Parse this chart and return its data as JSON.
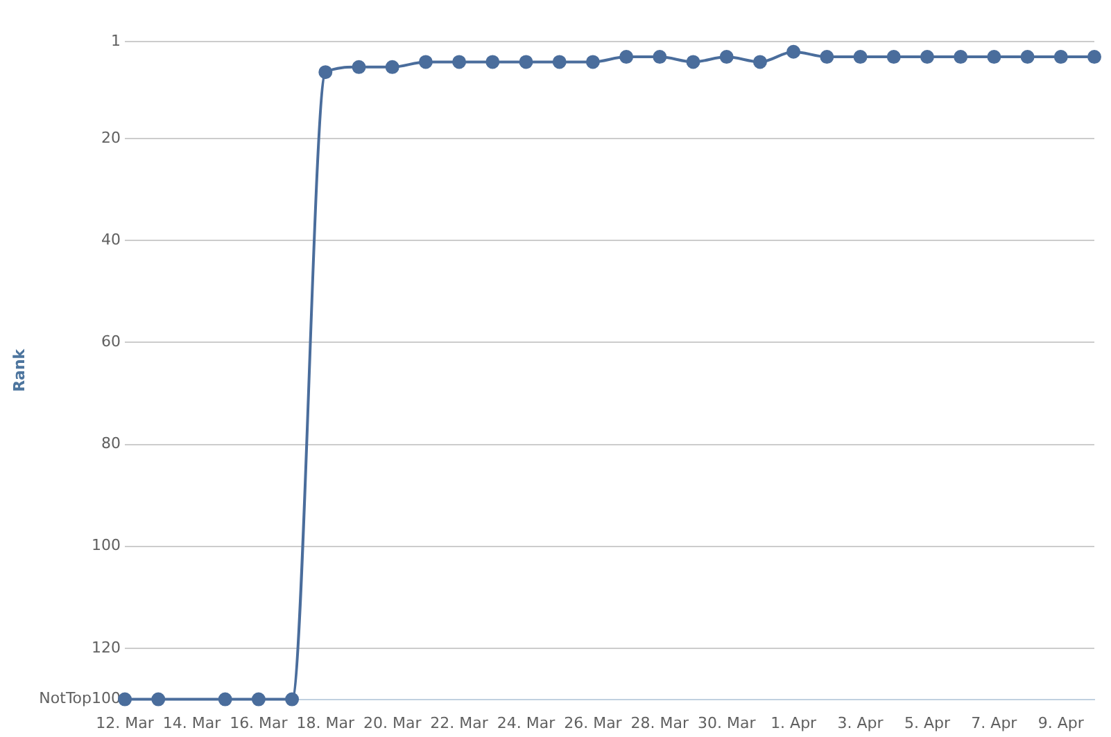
{
  "chart_data": {
    "type": "line",
    "ylabel": "Rank",
    "x": [
      "--03-12",
      "--03-13",
      "--03-15",
      "--03-16",
      "--03-17",
      "--03-18",
      "--03-19",
      "--03-20",
      "--03-21",
      "--03-22",
      "--03-23",
      "--03-24",
      "--03-25",
      "--03-26",
      "--03-27",
      "--03-28",
      "--03-29",
      "--03-30",
      "--03-31",
      "--04-01",
      "--04-02",
      "--04-03",
      "--04-04",
      "--04-05",
      "--04-06",
      "--04-07",
      "--04-08",
      "--04-09",
      "--04-10"
    ],
    "series": [
      {
        "color": "#4a6d9c",
        "values": [
          130,
          130,
          130,
          130,
          130,
          7,
          6,
          6,
          5,
          5,
          5,
          5,
          5,
          5,
          4,
          4,
          5,
          4,
          5,
          3,
          4,
          4,
          4,
          4,
          4,
          4,
          4,
          4,
          4
        ]
      }
    ],
    "xlim": [
      "--03-12",
      "--04-10"
    ],
    "xticks": [
      {
        "value": "--03-12",
        "label": "12. Mar"
      },
      {
        "value": "--03-14",
        "label": "14. Mar"
      },
      {
        "value": "--03-16",
        "label": "16. Mar"
      },
      {
        "value": "--03-18",
        "label": "18. Mar"
      },
      {
        "value": "--03-20",
        "label": "20. Mar"
      },
      {
        "value": "--03-22",
        "label": "22. Mar"
      },
      {
        "value": "--03-24",
        "label": "24. Mar"
      },
      {
        "value": "--03-26",
        "label": "26. Mar"
      },
      {
        "value": "--03-28",
        "label": "28. Mar"
      },
      {
        "value": "--03-30",
        "label": "30. Mar"
      },
      {
        "value": "--04-01",
        "label": "1. Apr"
      },
      {
        "value": "--04-03",
        "label": "3. Apr"
      },
      {
        "value": "--04-05",
        "label": "5. Apr"
      },
      {
        "value": "--04-07",
        "label": "7. Apr"
      },
      {
        "value": "--04-09",
        "label": "9. Apr"
      }
    ],
    "ylim": [
      130,
      1
    ],
    "yticks": [
      1,
      20,
      40,
      60,
      80,
      100,
      120,
      {
        "value": 130,
        "label": "NotTop100"
      }
    ],
    "grid": "y",
    "legend": false,
    "marker": "circle",
    "line_style": "solid"
  }
}
